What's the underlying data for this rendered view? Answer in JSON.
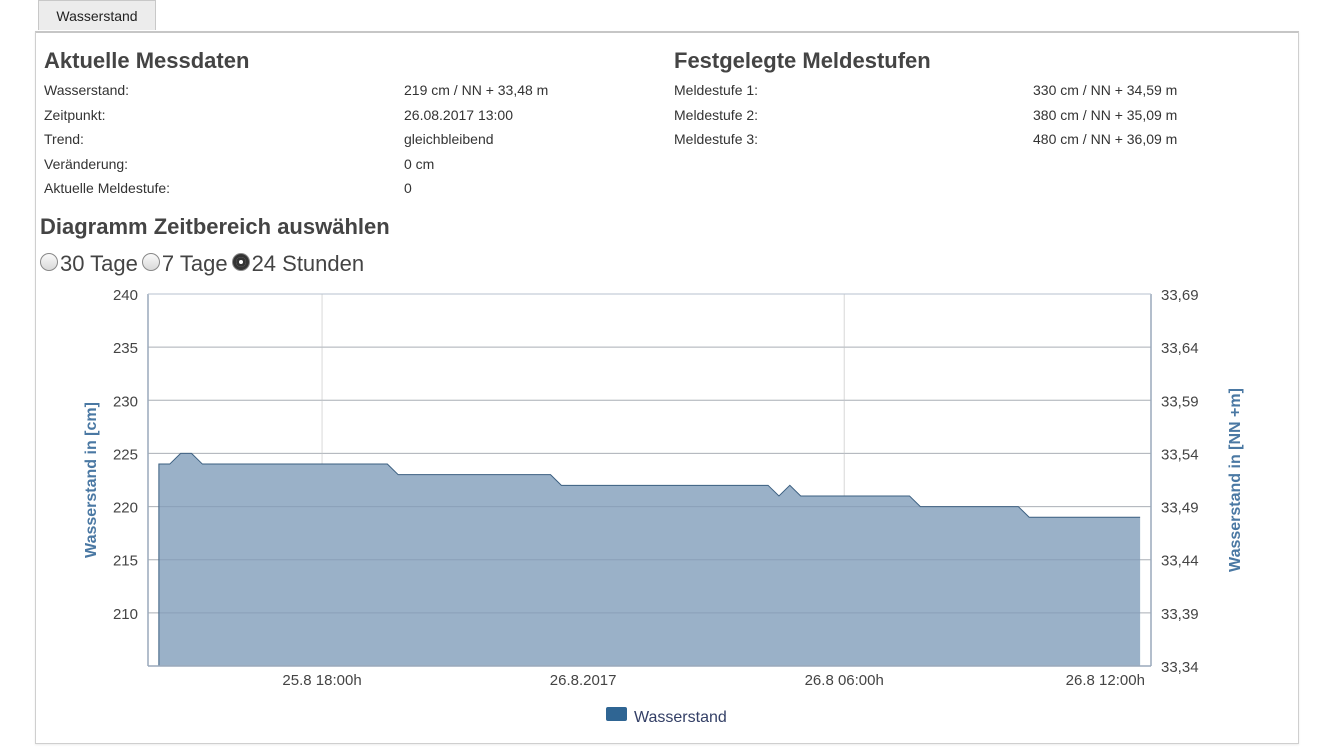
{
  "tab": {
    "label": "Wasserstand"
  },
  "current": {
    "heading": "Aktuelle Messdaten",
    "rows": [
      {
        "label": "Wasserstand:",
        "value": "219 cm / NN + 33,48 m"
      },
      {
        "label": "Zeitpunkt:",
        "value": "26.08.2017 13:00"
      },
      {
        "label": "Trend:",
        "value": "gleichbleibend"
      },
      {
        "label": "Veränderung:",
        "value": "0 cm"
      },
      {
        "label": "Aktuelle Meldestufe:",
        "value": "0"
      }
    ]
  },
  "levels": {
    "heading": "Festgelegte Meldestufen",
    "rows": [
      {
        "label": "Meldestufe 1:",
        "value": "330 cm / NN + 34,59 m"
      },
      {
        "label": "Meldestufe 2:",
        "value": "380 cm / NN + 35,09 m"
      },
      {
        "label": "Meldestufe 3:",
        "value": "480 cm / NN + 36,09 m"
      }
    ]
  },
  "range": {
    "heading": "Diagramm Zeitbereich auswählen",
    "options": [
      {
        "label": "30 Tage",
        "checked": false
      },
      {
        "label": "7 Tage",
        "checked": false
      },
      {
        "label": "24 Stunden",
        "checked": true
      }
    ]
  },
  "chart_data": {
    "type": "area",
    "ylabel": "Wasserstand in [cm]",
    "y2label": "Wasserstand in [NN +m]",
    "ylim": [
      205,
      240
    ],
    "y2lim": [
      33.34,
      33.69
    ],
    "yticks": [
      "240",
      "235",
      "230",
      "225",
      "220",
      "215",
      "210"
    ],
    "yticks_values": [
      240,
      235,
      230,
      225,
      220,
      215,
      210
    ],
    "y2ticks": [
      "33,69",
      "33,64",
      "33,59",
      "33,54",
      "33,49",
      "33,44",
      "33,39",
      "33,34"
    ],
    "y2ticks_values": [
      33.69,
      33.64,
      33.59,
      33.54,
      33.49,
      33.44,
      33.39,
      33.34
    ],
    "xlim": [
      14.0,
      37.05
    ],
    "xticks": [
      {
        "x": 18.0,
        "label": "25.8 18:00h"
      },
      {
        "x": 24.0,
        "label": "26.8.2017"
      },
      {
        "x": 30.0,
        "label": "26.8 06:00h"
      },
      {
        "x": 36.0,
        "label": "26.8 12:00h"
      }
    ],
    "grid_x": [
      18.0,
      30.0
    ],
    "series": [
      {
        "name": "Wasserstand",
        "color": "#9ab1c8",
        "line_color": "#3b5f80",
        "legend_color": "#2f6593",
        "points": [
          [
            14.25,
            224
          ],
          [
            14.5,
            224
          ],
          [
            14.75,
            225
          ],
          [
            15.0,
            225
          ],
          [
            15.25,
            224
          ],
          [
            15.5,
            224
          ],
          [
            16.0,
            224
          ],
          [
            17.0,
            224
          ],
          [
            18.0,
            224
          ],
          [
            19.0,
            224
          ],
          [
            19.5,
            224
          ],
          [
            19.75,
            223
          ],
          [
            20.0,
            223
          ],
          [
            21.0,
            223
          ],
          [
            22.0,
            223
          ],
          [
            23.25,
            223
          ],
          [
            23.5,
            222
          ],
          [
            24.0,
            222
          ],
          [
            25.0,
            222
          ],
          [
            26.0,
            222
          ],
          [
            27.0,
            222
          ],
          [
            28.25,
            222
          ],
          [
            28.5,
            221
          ],
          [
            28.75,
            222
          ],
          [
            29.0,
            221
          ],
          [
            30.0,
            221
          ],
          [
            31.0,
            221
          ],
          [
            31.5,
            221
          ],
          [
            31.75,
            220
          ],
          [
            32.0,
            220
          ],
          [
            33.0,
            220
          ],
          [
            34.0,
            220
          ],
          [
            34.25,
            219
          ],
          [
            35.0,
            219
          ],
          [
            36.0,
            219
          ],
          [
            36.8,
            219
          ]
        ]
      }
    ],
    "legend": "bottom-center",
    "grid": true
  }
}
